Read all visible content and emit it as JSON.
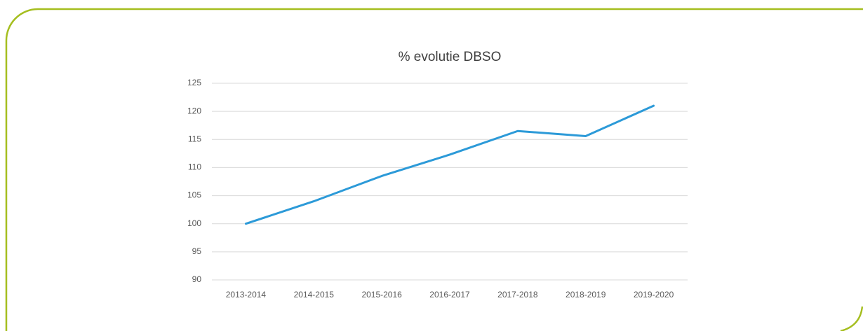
{
  "chart_data": {
    "type": "line",
    "title": "% evolutie DBSO",
    "categories": [
      "2013-2014",
      "2014-2015",
      "2015-2016",
      "2016-2017",
      "2017-2018",
      "2018-2019",
      "2019-2020"
    ],
    "series": [
      {
        "name": "DBSO",
        "color": "#2c9ad8",
        "values": [
          100,
          104,
          108.5,
          112.3,
          116.5,
          115.6,
          121
        ]
      }
    ],
    "ylim": [
      90,
      125
    ],
    "yticks": [
      90,
      95,
      100,
      105,
      110,
      115,
      120,
      125
    ],
    "grid": true
  }
}
